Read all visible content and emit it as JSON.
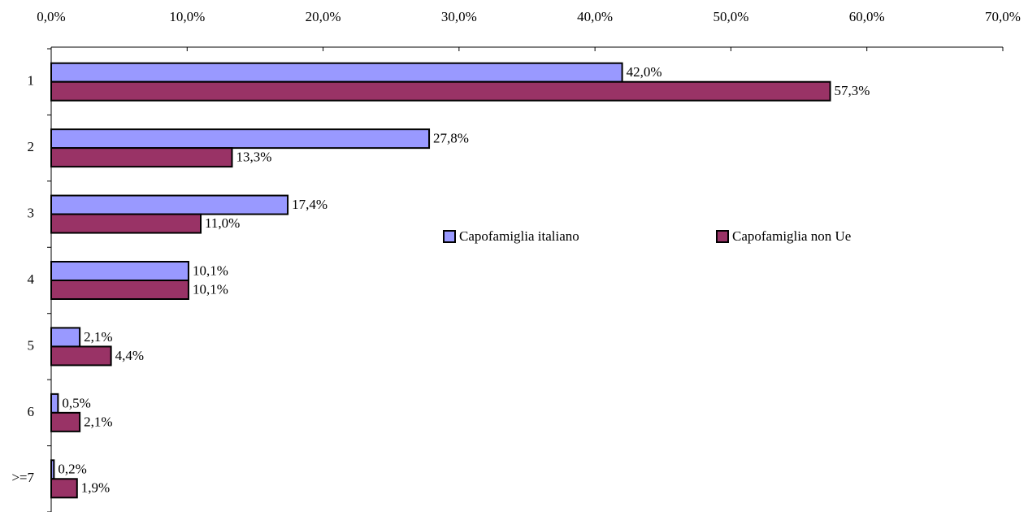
{
  "chart_data": {
    "type": "bar",
    "orientation": "horizontal",
    "categories": [
      "1",
      "2",
      "3",
      "4",
      "5",
      "6",
      ">=7"
    ],
    "series": [
      {
        "name": "Capofamiglia italiano",
        "color": "#9999ff",
        "values": [
          42.0,
          27.8,
          17.4,
          10.1,
          2.1,
          0.5,
          0.2
        ],
        "value_labels": [
          "42,0%",
          "27,8%",
          "17,4%",
          "10,1%",
          "2,1%",
          "0,5%",
          "0,2%"
        ]
      },
      {
        "name": "Capofamiglia non Ue",
        "color": "#993366",
        "values": [
          57.3,
          13.3,
          11.0,
          10.1,
          4.4,
          2.1,
          1.9
        ],
        "value_labels": [
          "57,3%",
          "13,3%",
          "11,0%",
          "10,1%",
          "4,4%",
          "2,1%",
          "1,9%"
        ]
      }
    ],
    "xlim": [
      0,
      70
    ],
    "xticks": [
      {
        "value": 0,
        "label": "0,0%"
      },
      {
        "value": 10,
        "label": "10,0%"
      },
      {
        "value": 20,
        "label": "20,0%"
      },
      {
        "value": 30,
        "label": "30,0%"
      },
      {
        "value": 40,
        "label": "40,0%"
      },
      {
        "value": 50,
        "label": "50,0%"
      },
      {
        "value": 60,
        "label": "60,0%"
      },
      {
        "value": 70,
        "label": "70,0%"
      }
    ],
    "legend": "center"
  }
}
